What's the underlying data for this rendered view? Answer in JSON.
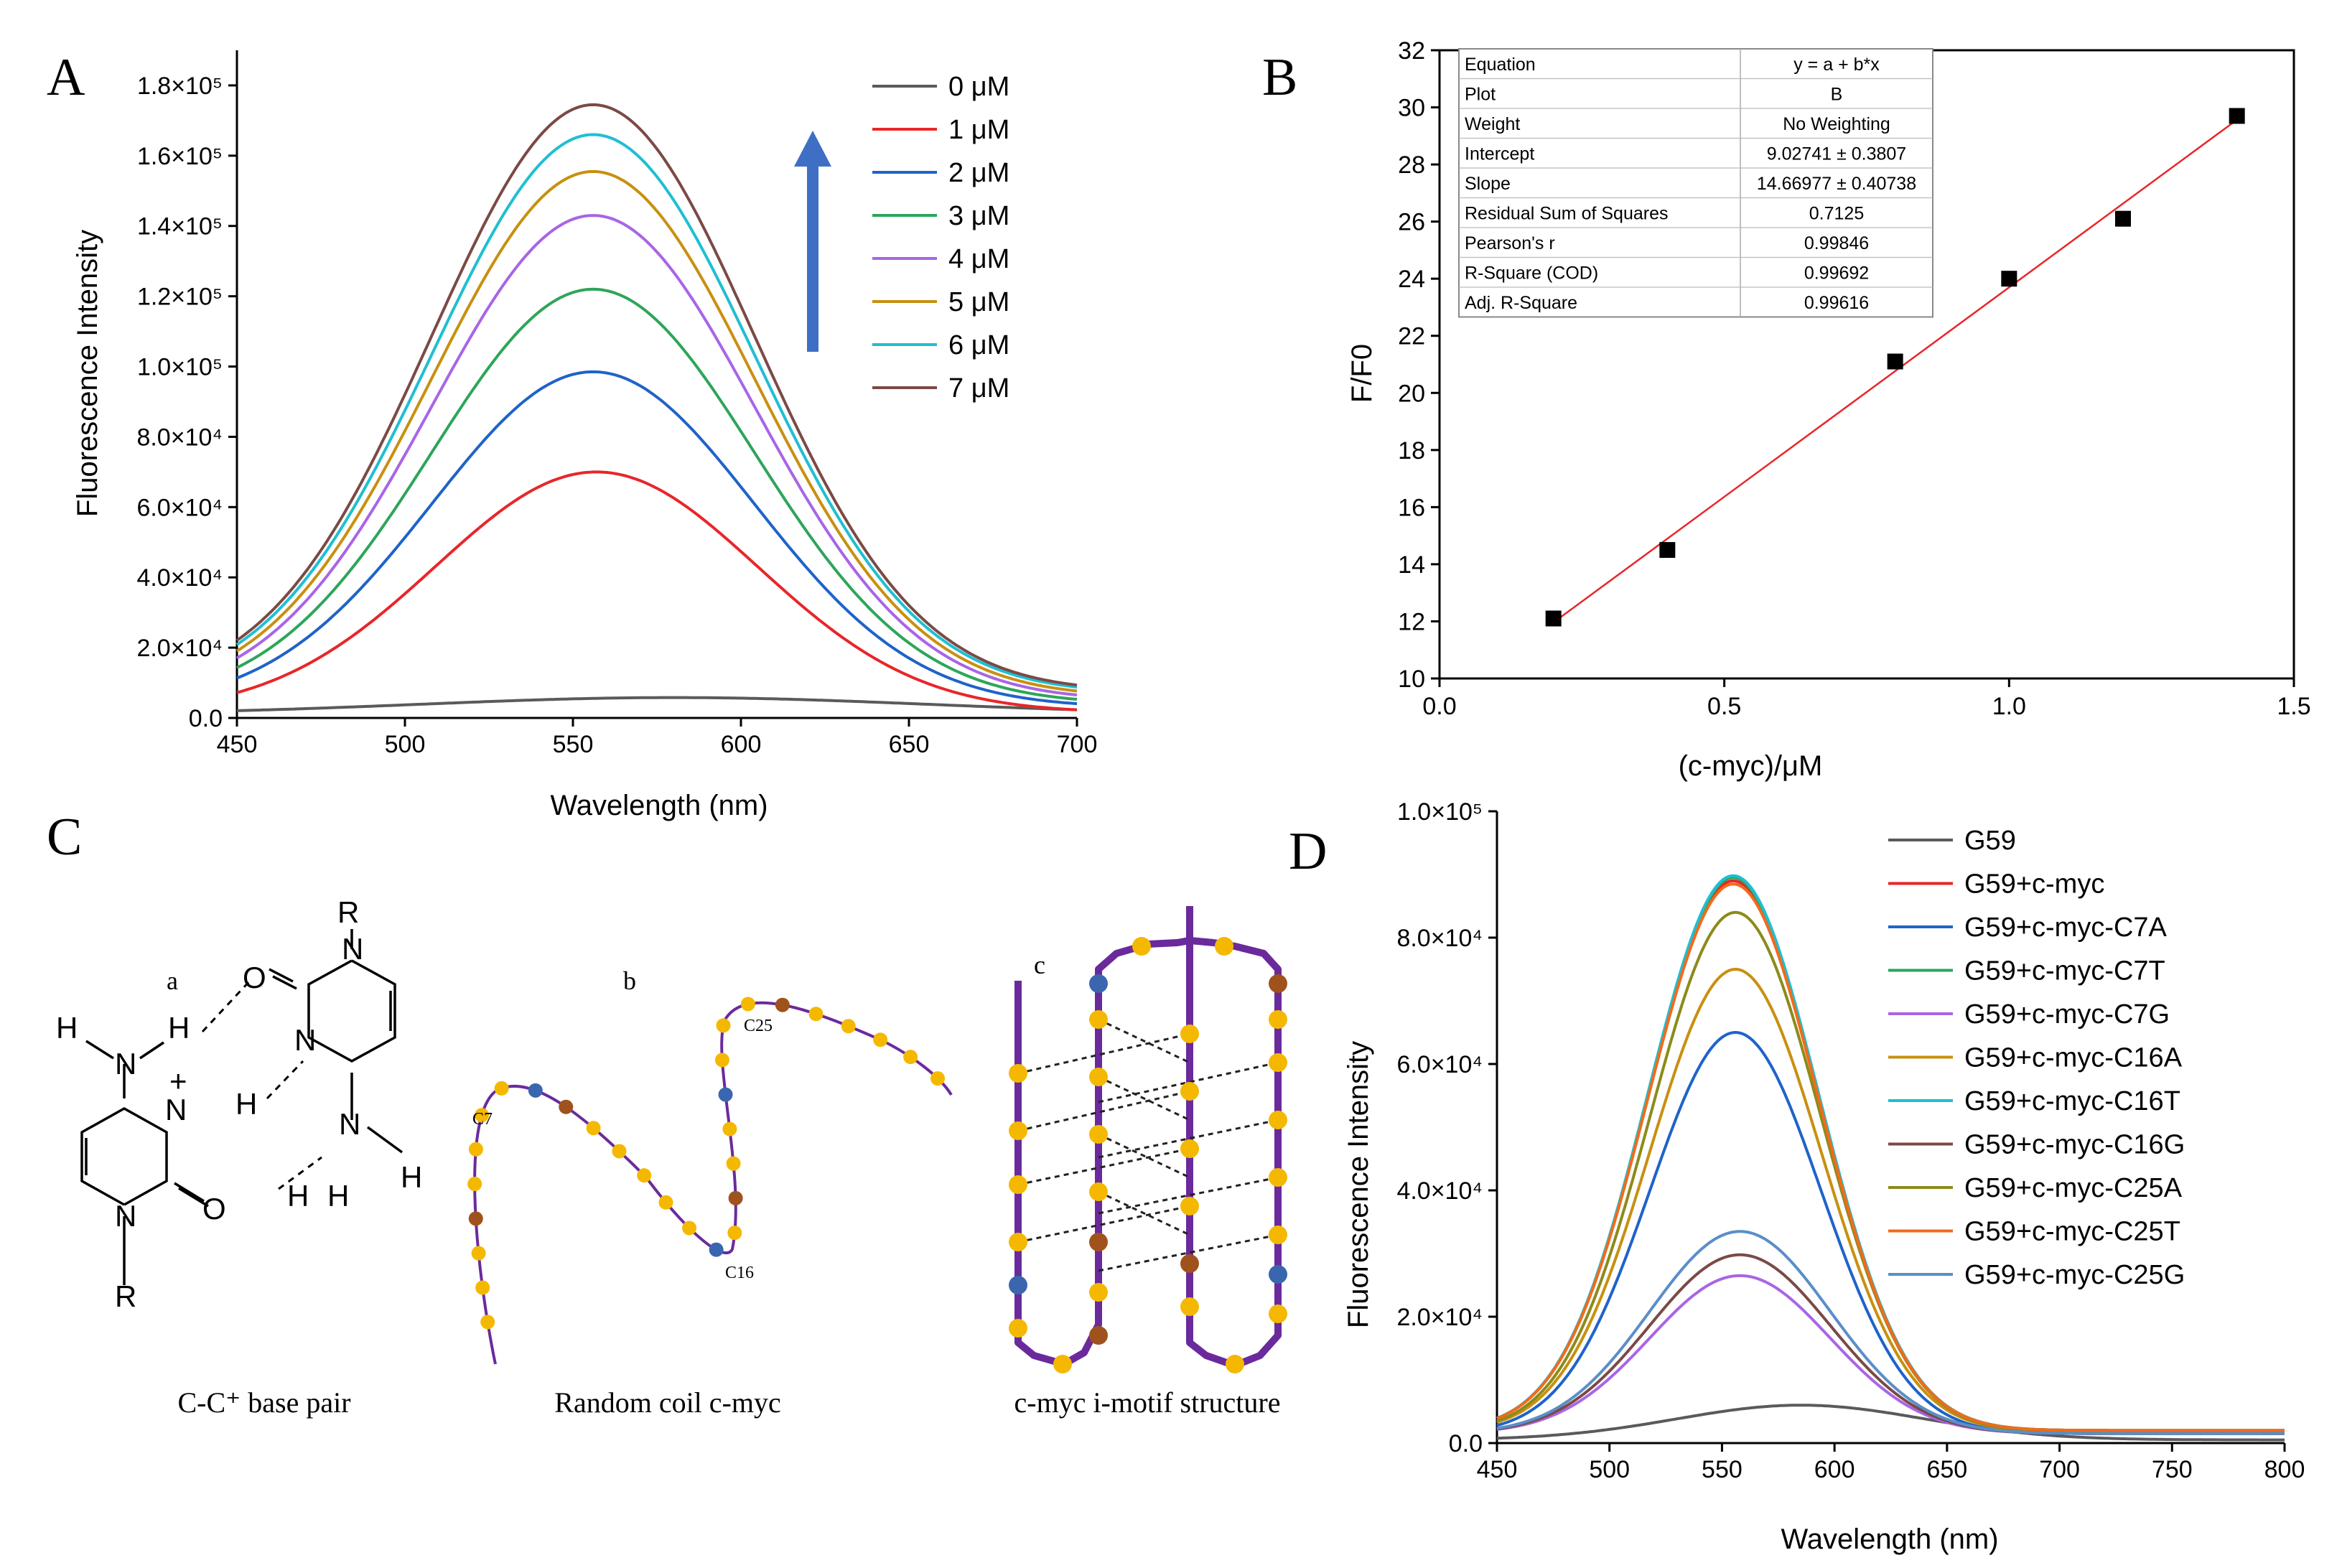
{
  "panels": {
    "A": "A",
    "B": "B",
    "C": "C",
    "D": "D"
  },
  "chart_data": [
    {
      "id": "A",
      "type": "line",
      "xlabel": "Wavelength (nm)",
      "ylabel": "Fluorescence Intensity",
      "xlim": [
        450,
        700
      ],
      "ylim": [
        0,
        190000
      ],
      "xticks": [
        "450",
        "500",
        "550",
        "600",
        "650",
        "700"
      ],
      "yticks": [
        "0.0",
        "2.0×10⁴",
        "4.0×10⁴",
        "6.0×10⁴",
        "8.0×10⁴",
        "1.0×10⁵",
        "1.2×10⁵",
        "1.4×10⁵",
        "1.6×10⁵",
        "1.8×10⁵"
      ],
      "ytick_values": [
        0,
        20000,
        40000,
        60000,
        80000,
        100000,
        120000,
        140000,
        160000,
        180000
      ],
      "legend_position": "top-right",
      "annotation": "upward arrow",
      "series": [
        {
          "name": "0 μM",
          "color": "#5a5a5a",
          "peak": 5800,
          "center": 580,
          "sigma": 75,
          "base": 1000
        },
        {
          "name": "1 μM",
          "color": "#e8262a",
          "peak": 70000,
          "center": 557,
          "sigma": 48,
          "base": 1500
        },
        {
          "name": "2 μM",
          "color": "#1f63c9",
          "peak": 98500,
          "center": 556,
          "sigma": 48,
          "base": 3000
        },
        {
          "name": "3 μM",
          "color": "#2ea55a",
          "peak": 122000,
          "center": 556,
          "sigma": 48,
          "base": 4000
        },
        {
          "name": "4 μM",
          "color": "#a865e6",
          "peak": 143000,
          "center": 556,
          "sigma": 48,
          "base": 5000
        },
        {
          "name": "5 μM",
          "color": "#c89010",
          "peak": 155500,
          "center": 556,
          "sigma": 48,
          "base": 6000
        },
        {
          "name": "6 μM",
          "color": "#1fbfd1",
          "peak": 166000,
          "center": 556,
          "sigma": 48,
          "base": 7000
        },
        {
          "name": "7 μM",
          "color": "#7b4a46",
          "peak": 174500,
          "center": 556,
          "sigma": 48,
          "base": 7500
        }
      ]
    },
    {
      "id": "B",
      "type": "scatter",
      "xlabel": "(c-myc)/μM",
      "ylabel": "F/F0",
      "xlim": [
        0.0,
        1.5
      ],
      "ylim": [
        10,
        32
      ],
      "xticks": [
        "0.0",
        "0.5",
        "1.0",
        "1.5"
      ],
      "xtick_values": [
        0.0,
        0.5,
        1.0,
        1.5
      ],
      "yticks": [
        "10",
        "12",
        "14",
        "16",
        "18",
        "20",
        "22",
        "24",
        "26",
        "28",
        "30",
        "32"
      ],
      "ytick_values": [
        10,
        12,
        14,
        16,
        18,
        20,
        22,
        24,
        26,
        28,
        30,
        32
      ],
      "points": {
        "x": [
          0.2,
          0.4,
          0.8,
          1.0,
          1.2,
          1.4
        ],
        "y": [
          12.1,
          14.5,
          21.1,
          24.0,
          26.1,
          29.7
        ]
      },
      "fit": {
        "intercept": 9.02741,
        "slope": 14.66977,
        "color": "#e8262a"
      },
      "table": [
        [
          "Equation",
          "y = a + b*x"
        ],
        [
          "Plot",
          "B"
        ],
        [
          "Weight",
          "No Weighting"
        ],
        [
          "Intercept",
          "9.02741 ± 0.3807"
        ],
        [
          "Slope",
          "14.66977 ± 0.40738"
        ],
        [
          "Residual Sum of Squares",
          "0.7125"
        ],
        [
          "Pearson's r",
          "0.99846"
        ],
        [
          "R-Square (COD)",
          "0.99692"
        ],
        [
          "Adj. R-Square",
          "0.99616"
        ]
      ]
    },
    {
      "id": "D",
      "type": "line",
      "xlabel": "Wavelength (nm)",
      "ylabel": "Fluorescence Intensity",
      "xlim": [
        450,
        800
      ],
      "ylim": [
        0,
        100000
      ],
      "xticks": [
        "450",
        "500",
        "550",
        "600",
        "650",
        "700",
        "750",
        "800"
      ],
      "yticks": [
        "0.0",
        "2.0×10⁴",
        "4.0×10⁴",
        "6.0×10⁴",
        "8.0×10⁴",
        "1.0×10⁵"
      ],
      "ytick_values": [
        0,
        20000,
        40000,
        60000,
        80000,
        100000
      ],
      "legend_position": "top-right",
      "series": [
        {
          "name": "G59",
          "color": "#5a5a5a",
          "peak": 6000,
          "center": 585,
          "sigma": 55,
          "base": 500
        },
        {
          "name": "G59+c-myc",
          "color": "#e8262a",
          "peak": 89000,
          "center": 555,
          "sigma": 38,
          "base": 2000
        },
        {
          "name": "G59+c-myc-C7A",
          "color": "#1f63c9",
          "peak": 65000,
          "center": 556,
          "sigma": 38,
          "base": 1500
        },
        {
          "name": "G59+c-myc-C7T",
          "color": "#2ea55a",
          "peak": 89500,
          "center": 555,
          "sigma": 38,
          "base": 2000
        },
        {
          "name": "G59+c-myc-C7G",
          "color": "#a865e6",
          "peak": 26500,
          "center": 558,
          "sigma": 40,
          "base": 1500
        },
        {
          "name": "G59+c-myc-C16A",
          "color": "#c89010",
          "peak": 75000,
          "center": 556,
          "sigma": 38,
          "base": 1800
        },
        {
          "name": "G59+c-myc-C16T",
          "color": "#1fbfd1",
          "peak": 89800,
          "center": 555,
          "sigma": 38,
          "base": 2000
        },
        {
          "name": "G59+c-myc-C16G",
          "color": "#7b4a46",
          "peak": 29800,
          "center": 558,
          "sigma": 40,
          "base": 1500
        },
        {
          "name": "G59+c-myc-C25A",
          "color": "#8b8b1a",
          "peak": 84000,
          "center": 556,
          "sigma": 38,
          "base": 1800
        },
        {
          "name": "G59+c-myc-C25T",
          "color": "#f26a1b",
          "peak": 88500,
          "center": 555,
          "sigma": 38,
          "base": 2000
        },
        {
          "name": "G59+c-myc-C25G",
          "color": "#5a8ec9",
          "peak": 33500,
          "center": 558,
          "sigma": 40,
          "base": 1500
        }
      ]
    }
  ],
  "schematic": {
    "sub_a": "a",
    "sub_b": "b",
    "sub_c": "c",
    "caption_a": "C-C⁺ base pair",
    "caption_b": "Random coil c-myc",
    "caption_c": "c-myc i-motif  structure",
    "label_c7": "C7",
    "label_c16": "C16",
    "label_c25": "C25",
    "atoms": {
      "R": "R",
      "H": "H",
      "N": "N",
      "O": "O",
      "plus": "+"
    }
  }
}
